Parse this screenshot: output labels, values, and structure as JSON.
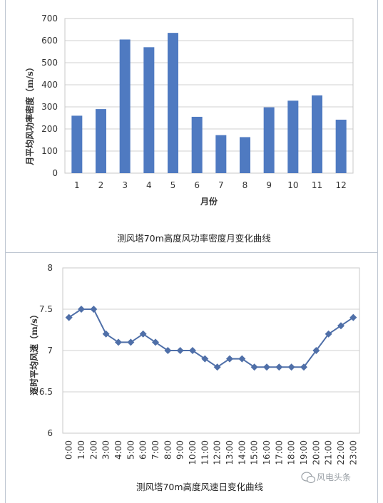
{
  "chart_data": [
    {
      "type": "bar",
      "categories": [
        "1",
        "2",
        "3",
        "4",
        "5",
        "6",
        "7",
        "8",
        "9",
        "10",
        "11",
        "12"
      ],
      "values": [
        260,
        290,
        605,
        570,
        635,
        255,
        172,
        163,
        298,
        328,
        352,
        242
      ],
      "title": "",
      "xlabel": "月份",
      "ylabel": "月平均风功率密度（m/s）",
      "ylim": [
        0,
        700
      ],
      "yticks": [
        "0",
        "100",
        "200",
        "300",
        "400",
        "500",
        "600",
        "700"
      ],
      "grid": "horizontal",
      "color": "#4f7ac1",
      "caption": "测风塔70m高度风功率密度月变化曲线"
    },
    {
      "type": "line",
      "x": [
        "0:00",
        "1:00",
        "2:00",
        "3:00",
        "4:00",
        "5:00",
        "6:00",
        "7:00",
        "8:00",
        "9:00",
        "10:00",
        "11:00",
        "12:00",
        "13:00",
        "14:00",
        "15:00",
        "16:00",
        "17:00",
        "18:00",
        "19:00",
        "20:00",
        "21:00",
        "22:00",
        "23:00"
      ],
      "values": [
        7.4,
        7.5,
        7.5,
        7.2,
        7.1,
        7.1,
        7.2,
        7.1,
        7.0,
        7.0,
        7.0,
        6.9,
        6.8,
        6.9,
        6.9,
        6.8,
        6.8,
        6.8,
        6.8,
        6.8,
        7.0,
        7.2,
        7.3,
        7.4
      ],
      "title": "",
      "xlabel": "",
      "ylabel": "逐时平均风速（m/s）",
      "ylim": [
        6,
        8
      ],
      "yticks": [
        "6",
        "6.5",
        "7",
        "7.5",
        "8"
      ],
      "grid": "horizontal",
      "marker": "diamond",
      "color": "#4f6fa8",
      "caption": "测风塔70m高度风速日变化曲线"
    }
  ],
  "watermark": {
    "icon": "wechat-icon",
    "text": "风电头条"
  }
}
